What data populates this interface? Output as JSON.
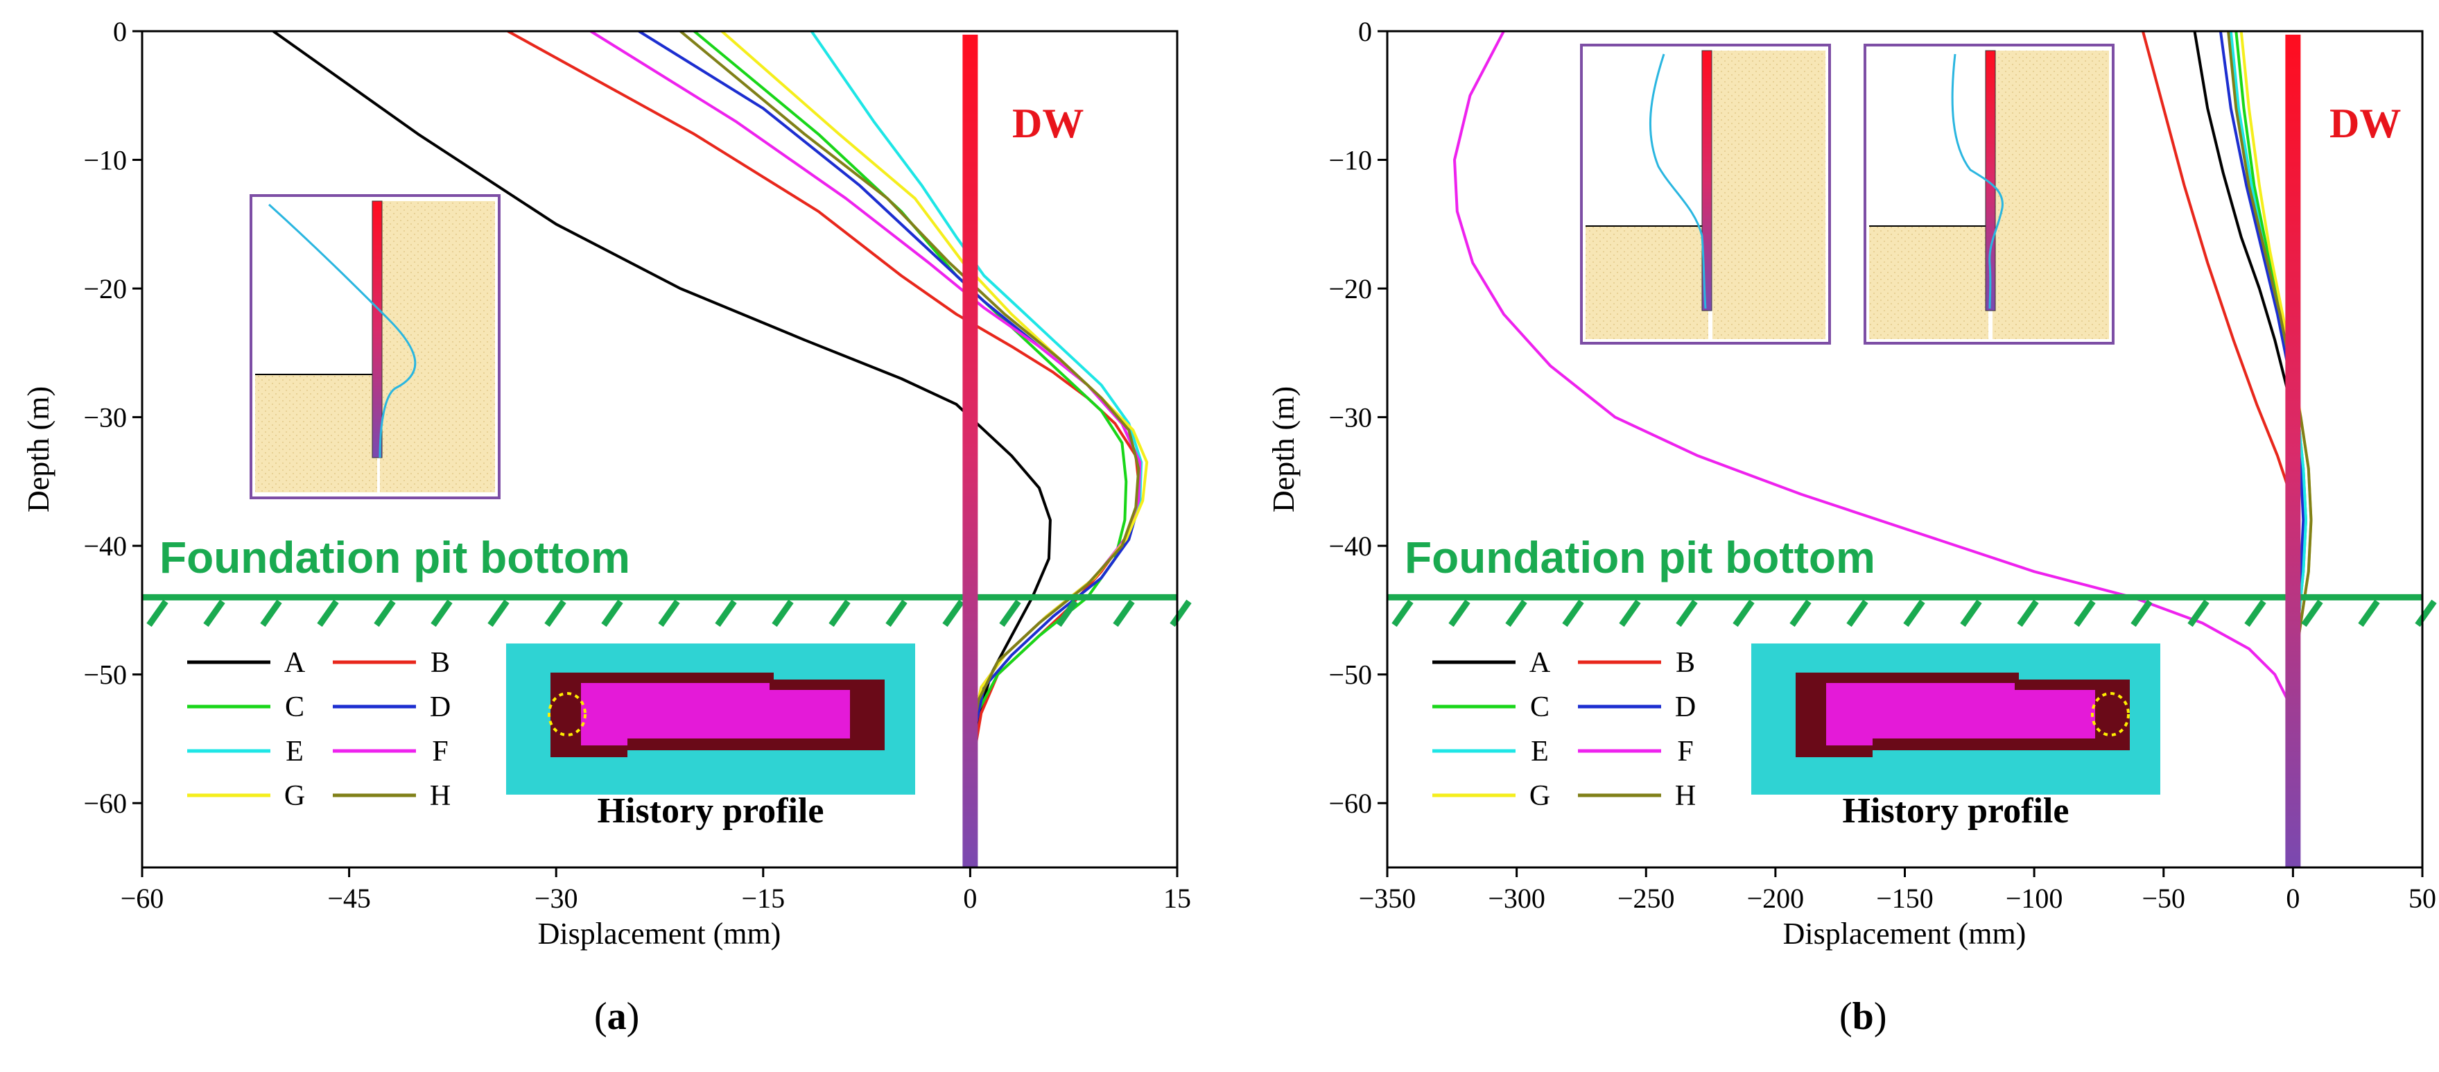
{
  "chart_data": [
    {
      "panel": "a",
      "type": "line",
      "caption_letter": "a",
      "xlabel": "Displacement (mm)",
      "ylabel": "Depth (m)",
      "xlim": [
        -60,
        15
      ],
      "ylim": [
        -65,
        0
      ],
      "xticks": [
        -60,
        -45,
        -30,
        -15,
        0,
        15
      ],
      "yticks": [
        0,
        -10,
        -20,
        -30,
        -40,
        -50,
        -60
      ],
      "wall_label": "DW",
      "pit_label": "Foundation pit bottom",
      "pit_depth": -44,
      "inset_label": "History profile",
      "series": [
        {
          "name": "A",
          "color": "#000000",
          "points": [
            [
              -50.5,
              0
            ],
            [
              -40,
              -8
            ],
            [
              -30,
              -15
            ],
            [
              -21,
              -20
            ],
            [
              -12,
              -24
            ],
            [
              -5,
              -27
            ],
            [
              -1,
              -29
            ],
            [
              1,
              -31
            ],
            [
              3,
              -33
            ],
            [
              5,
              -35.5
            ],
            [
              5.8,
              -38
            ],
            [
              5.7,
              -41
            ],
            [
              4.5,
              -44
            ],
            [
              3,
              -47
            ],
            [
              1.5,
              -50
            ],
            [
              0.7,
              -53
            ],
            [
              0.2,
              -57
            ],
            [
              0,
              -65
            ]
          ]
        },
        {
          "name": "B",
          "color": "#e8271c",
          "points": [
            [
              -33.5,
              0
            ],
            [
              -20,
              -8
            ],
            [
              -11,
              -14
            ],
            [
              -5,
              -19
            ],
            [
              -1,
              -22
            ],
            [
              3,
              -24.5
            ],
            [
              6,
              -26.5
            ],
            [
              8.5,
              -28.5
            ],
            [
              10.5,
              -30.5
            ],
            [
              12,
              -33
            ],
            [
              12.3,
              -36
            ],
            [
              11.5,
              -39
            ],
            [
              9.5,
              -42
            ],
            [
              7,
              -45
            ],
            [
              4,
              -48
            ],
            [
              2,
              -50
            ],
            [
              0.8,
              -53
            ],
            [
              0,
              -58
            ]
          ]
        },
        {
          "name": "C",
          "color": "#19d619",
          "points": [
            [
              -20,
              0
            ],
            [
              -11,
              -8
            ],
            [
              -5,
              -14
            ],
            [
              -1,
              -19
            ],
            [
              3,
              -23
            ],
            [
              6.5,
              -26.5
            ],
            [
              9.5,
              -29.5
            ],
            [
              11,
              -32
            ],
            [
              11.3,
              -35
            ],
            [
              11.2,
              -38
            ],
            [
              10.5,
              -41
            ],
            [
              8.5,
              -44
            ],
            [
              5,
              -47
            ],
            [
              2,
              -50
            ],
            [
              0.5,
              -53
            ],
            [
              0,
              -58
            ]
          ]
        },
        {
          "name": "D",
          "color": "#1c2ed0",
          "points": [
            [
              -24,
              0
            ],
            [
              -15,
              -6
            ],
            [
              -8,
              -12
            ],
            [
              -3,
              -17
            ],
            [
              1,
              -21
            ],
            [
              5,
              -24.5
            ],
            [
              8.5,
              -27.5
            ],
            [
              11,
              -30.5
            ],
            [
              12.3,
              -33.5
            ],
            [
              12.3,
              -36.5
            ],
            [
              11.5,
              -39.5
            ],
            [
              9.5,
              -42.5
            ],
            [
              6,
              -45.5
            ],
            [
              3,
              -48.5
            ],
            [
              1,
              -51
            ],
            [
              0,
              -56
            ]
          ]
        },
        {
          "name": "E",
          "color": "#1ee6e6",
          "points": [
            [
              -11.5,
              0
            ],
            [
              -7,
              -7
            ],
            [
              -3.5,
              -12
            ],
            [
              -1,
              -16
            ],
            [
              1,
              -19
            ],
            [
              3.5,
              -21.5
            ],
            [
              6.5,
              -24.5
            ],
            [
              9.5,
              -27.5
            ],
            [
              11.5,
              -30.5
            ],
            [
              12.4,
              -33.5
            ],
            [
              12.3,
              -36.5
            ],
            [
              11.2,
              -39.5
            ],
            [
              9,
              -42.5
            ],
            [
              5.5,
              -45.5
            ],
            [
              2.5,
              -48.5
            ],
            [
              0.8,
              -51
            ],
            [
              0,
              -55
            ]
          ]
        },
        {
          "name": "F",
          "color": "#ee22ee",
          "points": [
            [
              -27.5,
              0
            ],
            [
              -17,
              -7
            ],
            [
              -9,
              -13
            ],
            [
              -3,
              -18
            ],
            [
              1,
              -21.5
            ],
            [
              5,
              -24.5
            ],
            [
              8.5,
              -27.5
            ],
            [
              11,
              -30.5
            ],
            [
              12.3,
              -33.5
            ],
            [
              12.2,
              -36.5
            ],
            [
              11.2,
              -39.5
            ],
            [
              9,
              -42.5
            ],
            [
              5.5,
              -45.5
            ],
            [
              2.5,
              -48.5
            ],
            [
              0.8,
              -51
            ],
            [
              0,
              -55
            ]
          ]
        },
        {
          "name": "G",
          "color": "#f5ee1c",
          "points": [
            [
              -18,
              0
            ],
            [
              -9.5,
              -8
            ],
            [
              -4,
              -13
            ],
            [
              -0.5,
              -18
            ],
            [
              3,
              -22
            ],
            [
              6.5,
              -25.5
            ],
            [
              9.5,
              -28.5
            ],
            [
              11.8,
              -31
            ],
            [
              12.8,
              -33.5
            ],
            [
              12.5,
              -36.5
            ],
            [
              11.3,
              -39.5
            ],
            [
              9,
              -42.5
            ],
            [
              5.5,
              -45.5
            ],
            [
              2.5,
              -48.5
            ],
            [
              0.8,
              -51
            ],
            [
              0,
              -55
            ]
          ]
        },
        {
          "name": "H",
          "color": "#808018",
          "points": [
            [
              -21,
              0
            ],
            [
              -12,
              -8
            ],
            [
              -6,
              -13
            ],
            [
              -1.5,
              -18
            ],
            [
              2.5,
              -22
            ],
            [
              6.5,
              -25.5
            ],
            [
              9.5,
              -28.5
            ],
            [
              11.5,
              -31
            ],
            [
              12.2,
              -34
            ],
            [
              12,
              -37
            ],
            [
              11,
              -40
            ],
            [
              8.5,
              -43
            ],
            [
              5,
              -46
            ],
            [
              2,
              -49
            ],
            [
              0.6,
              -52
            ],
            [
              0,
              -56
            ]
          ]
        }
      ]
    },
    {
      "panel": "b",
      "type": "line",
      "caption_letter": "b",
      "xlabel": "Displacement (mm)",
      "ylabel": "Depth (m)",
      "xlim": [
        -350,
        50
      ],
      "ylim": [
        -65,
        0
      ],
      "xticks": [
        -350,
        -300,
        -250,
        -200,
        -150,
        -100,
        -50,
        0,
        50
      ],
      "yticks": [
        0,
        -10,
        -20,
        -30,
        -40,
        -50,
        -60
      ],
      "wall_label": "DW",
      "pit_label": "Foundation pit bottom",
      "pit_depth": -44,
      "inset_label": "History profile",
      "series": [
        {
          "name": "A",
          "color": "#000000",
          "points": [
            [
              -38,
              0
            ],
            [
              -33,
              -6
            ],
            [
              -27,
              -11
            ],
            [
              -20,
              -16
            ],
            [
              -13,
              -20
            ],
            [
              -7,
              -24
            ],
            [
              -2,
              -28
            ],
            [
              0,
              -32
            ],
            [
              0,
              -40
            ],
            [
              0,
              -50
            ]
          ]
        },
        {
          "name": "B",
          "color": "#e8271c",
          "points": [
            [
              -58,
              0
            ],
            [
              -50,
              -6
            ],
            [
              -42,
              -12
            ],
            [
              -33,
              -18
            ],
            [
              -23,
              -24
            ],
            [
              -14,
              -29
            ],
            [
              -6,
              -33
            ],
            [
              -1,
              -36
            ],
            [
              1,
              -40
            ],
            [
              1,
              -44
            ],
            [
              0,
              -48
            ],
            [
              0,
              -52
            ]
          ]
        },
        {
          "name": "C",
          "color": "#19d619",
          "points": [
            [
              -22,
              0
            ],
            [
              -19,
              -6
            ],
            [
              -15,
              -12
            ],
            [
              -10,
              -17
            ],
            [
              -5,
              -22
            ],
            [
              -1,
              -26
            ],
            [
              2,
              -30
            ],
            [
              4,
              -34
            ],
            [
              5,
              -38
            ],
            [
              4,
              -42
            ],
            [
              2,
              -46
            ],
            [
              0,
              -50
            ]
          ]
        },
        {
          "name": "D",
          "color": "#1c2ed0",
          "points": [
            [
              -28,
              0
            ],
            [
              -24,
              -6
            ],
            [
              -18,
              -12
            ],
            [
              -12,
              -17
            ],
            [
              -6,
              -22
            ],
            [
              -2,
              -26
            ],
            [
              1,
              -30
            ],
            [
              3,
              -34
            ],
            [
              4,
              -38
            ],
            [
              3,
              -42
            ],
            [
              1,
              -46
            ],
            [
              0,
              -50
            ]
          ]
        },
        {
          "name": "E",
          "color": "#1ee6e6",
          "points": [
            [
              -24,
              0
            ],
            [
              -21,
              -6
            ],
            [
              -16,
              -12
            ],
            [
              -11,
              -17
            ],
            [
              -5,
              -22
            ],
            [
              -1,
              -26
            ],
            [
              2,
              -30
            ],
            [
              4,
              -34
            ],
            [
              5,
              -38
            ],
            [
              4,
              -42
            ],
            [
              2,
              -46
            ],
            [
              0,
              -50
            ]
          ]
        },
        {
          "name": "F",
          "color": "#ee22ee",
          "points": [
            [
              -305,
              0
            ],
            [
              -318,
              -5
            ],
            [
              -324,
              -10
            ],
            [
              -323,
              -14
            ],
            [
              -317,
              -18
            ],
            [
              -305,
              -22
            ],
            [
              -287,
              -26
            ],
            [
              -262,
              -30
            ],
            [
              -230,
              -33
            ],
            [
              -190,
              -36
            ],
            [
              -145,
              -39
            ],
            [
              -100,
              -42
            ],
            [
              -62,
              -44
            ],
            [
              -35,
              -46
            ],
            [
              -17,
              -48
            ],
            [
              -7,
              -50
            ],
            [
              -2,
              -52
            ]
          ]
        },
        {
          "name": "G",
          "color": "#f5ee1c",
          "points": [
            [
              -20,
              0
            ],
            [
              -17,
              -6
            ],
            [
              -13,
              -12
            ],
            [
              -9,
              -17
            ],
            [
              -4,
              -22
            ],
            [
              0,
              -26
            ],
            [
              3,
              -30
            ],
            [
              6,
              -34
            ],
            [
              7,
              -38
            ],
            [
              6,
              -42
            ],
            [
              3,
              -46
            ],
            [
              0,
              -50
            ]
          ]
        },
        {
          "name": "H",
          "color": "#808018",
          "points": [
            [
              -25,
              0
            ],
            [
              -22,
              -6
            ],
            [
              -17,
              -12
            ],
            [
              -11,
              -17
            ],
            [
              -5,
              -22
            ],
            [
              -1,
              -26
            ],
            [
              3,
              -30
            ],
            [
              6,
              -34
            ],
            [
              7,
              -38
            ],
            [
              6,
              -42
            ],
            [
              3,
              -46
            ],
            [
              0,
              -50
            ]
          ]
        }
      ]
    }
  ]
}
